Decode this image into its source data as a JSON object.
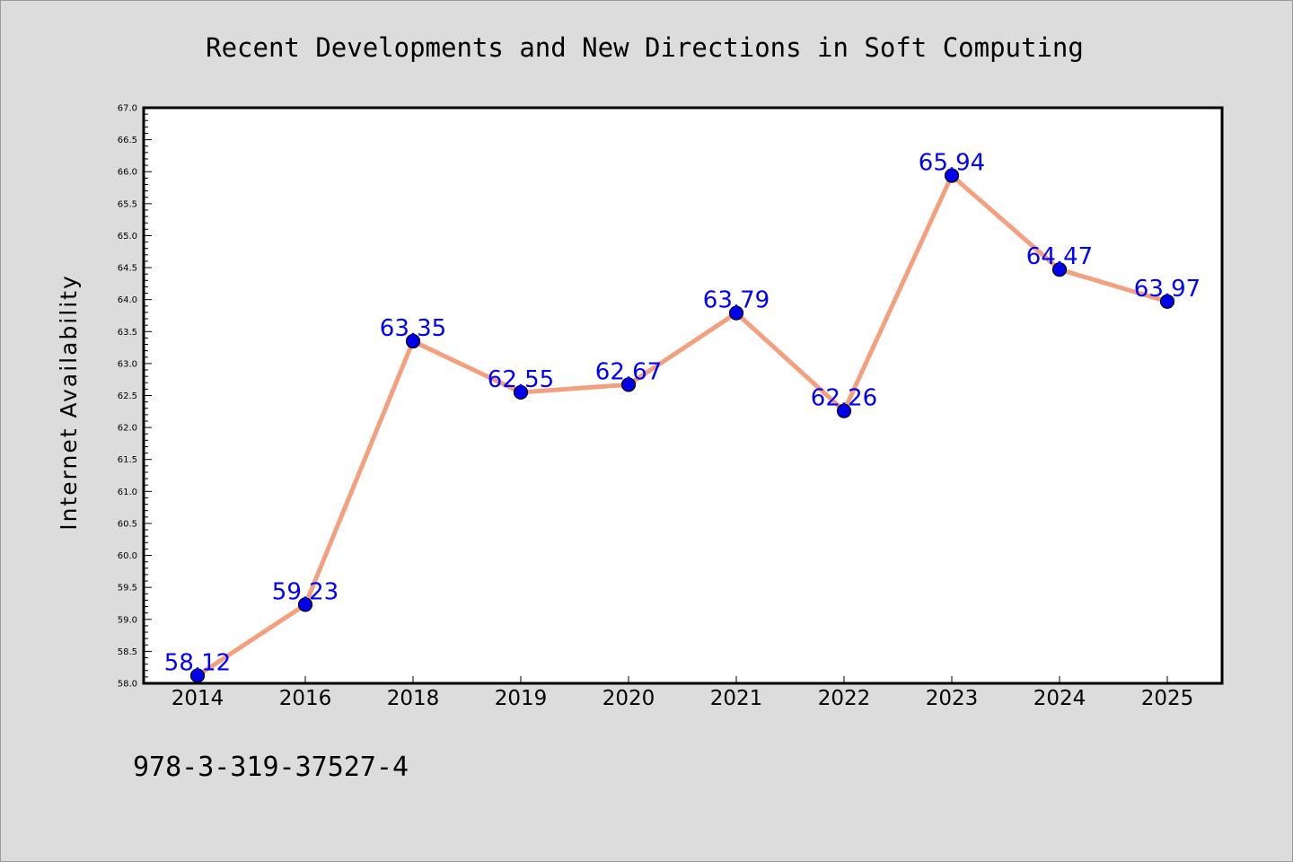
{
  "chart_data": {
    "type": "line",
    "title": "Recent Developments and New Directions in Soft Computing",
    "xlabel": "",
    "ylabel": "Internet Availability",
    "categories": [
      "2014",
      "2016",
      "2018",
      "2019",
      "2020",
      "2021",
      "2022",
      "2023",
      "2024",
      "2025"
    ],
    "series": [
      {
        "values": [
          58.12,
          59.23,
          63.35,
          62.55,
          62.67,
          63.79,
          62.26,
          65.94,
          64.47,
          63.97
        ],
        "data_labels": [
          "58.12",
          "59.23",
          "63.35",
          "62.55",
          "62.67",
          "63.79",
          "62.26",
          "65.94",
          "64.47",
          "63.97"
        ],
        "line_color": "#f4a07e",
        "marker_color": "#0000ee"
      }
    ],
    "ylim": [
      58.0,
      67.0
    ],
    "yticks": [
      "58.0",
      "58.5",
      "59.0",
      "59.5",
      "60.0",
      "60.5",
      "61.0",
      "61.5",
      "62.0",
      "62.5",
      "63.0",
      "63.5",
      "64.0",
      "64.5",
      "65.0",
      "65.5",
      "66.0",
      "66.5",
      "67.0"
    ],
    "grid": false,
    "legend": "none",
    "colors": {
      "background": "#dcdcdc",
      "plot_background": "#ffffff",
      "data_label": "#0000ff"
    }
  },
  "footer": {
    "isbn": "978-3-319-37527-4"
  }
}
